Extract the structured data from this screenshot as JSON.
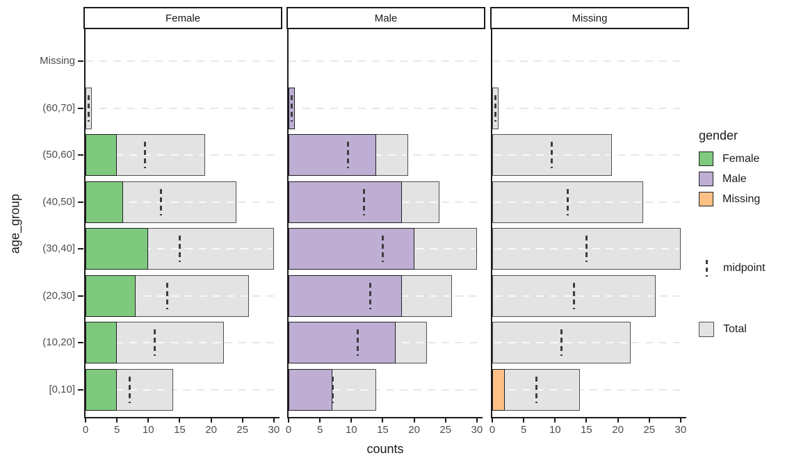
{
  "chart_data": {
    "type": "bar",
    "orientation": "horizontal",
    "title": "",
    "xlabel": "counts",
    "ylabel": "age_group",
    "xlim": [
      0,
      30
    ],
    "x_ticks": [
      0,
      5,
      10,
      15,
      20,
      25,
      30
    ],
    "grid": "dashed horizontal per category",
    "categories": [
      "Missing",
      "(60,70]",
      "(50,60]",
      "(40,50]",
      "(30,40]",
      "(20,30]",
      "(10,20]",
      "[0,10]"
    ],
    "facets": [
      {
        "label": "Female",
        "color": "#7FC97F",
        "values": [
          0,
          0,
          5,
          6,
          10,
          8,
          5,
          5
        ],
        "totals": [
          0,
          1,
          19,
          24,
          30,
          26,
          22,
          14
        ],
        "midpoints": [
          null,
          0.5,
          9.5,
          12,
          15,
          13,
          11,
          7
        ]
      },
      {
        "label": "Male",
        "color": "#BEAED4",
        "values": [
          0,
          1,
          14,
          18,
          20,
          18,
          17,
          7
        ],
        "totals": [
          0,
          1,
          19,
          24,
          30,
          26,
          22,
          14
        ],
        "midpoints": [
          null,
          0.5,
          9.5,
          12,
          15,
          13,
          11,
          7
        ]
      },
      {
        "label": "Missing",
        "color": "#FDC086",
        "values": [
          0,
          0,
          0,
          0,
          0,
          0,
          0,
          2
        ],
        "totals": [
          0,
          1,
          19,
          24,
          30,
          26,
          22,
          14
        ],
        "midpoints": [
          null,
          0.5,
          9.5,
          12,
          15,
          13,
          11,
          7
        ]
      }
    ],
    "legend": {
      "gender_title": "gender",
      "items": [
        {
          "label": "Female",
          "color": "#7FC97F"
        },
        {
          "label": "Male",
          "color": "#BEAED4"
        },
        {
          "label": "Missing",
          "color": "#FDC086"
        }
      ],
      "midpoint_label": "midpoint",
      "total_label": "Total",
      "total_color": "#E3E3E3"
    }
  }
}
